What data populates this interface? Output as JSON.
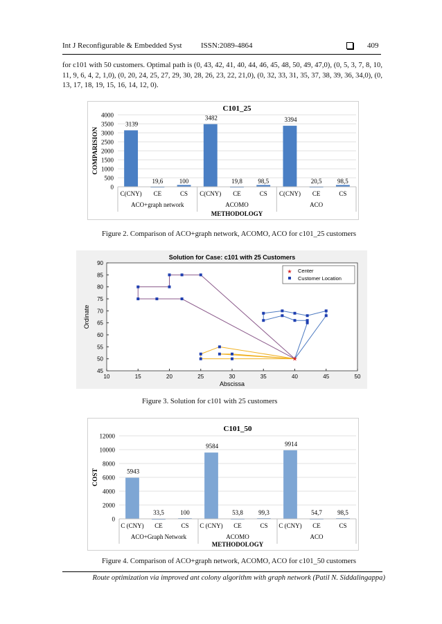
{
  "header": {
    "journal": "Int J Reconfigurable & Embedded Syst",
    "issn": "ISSN:2089-4864",
    "page_number": "409"
  },
  "paragraph": "for c101 with 50 customers. Optimal path is (0, 43, 42, 41, 40, 44, 46, 45, 48, 50, 49, 47,0), (0, 5, 3, 7, 8, 10, 11, 9, 6, 4, 2, 1,0), (0, 20, 24, 25, 27, 29, 30, 28, 26, 23, 22, 21,0), (0, 32, 33, 31, 35, 37, 38, 39, 36, 34,0), (0, 13, 17, 18, 19, 15, 16, 14, 12, 0).",
  "captions": {
    "fig2": "Figure 2. Comparison of ACO+graph network, ACOMO, ACO for c101_25 customers",
    "fig3": "Figure 3. Solution for c101 with 25 customers",
    "fig4": "Figure 4. Comparison of ACO+graph network, ACOMO, ACO for c101_50 customers"
  },
  "footer": "Route optimization via improved ant colony algorithm with graph network (Patil N. Siddalingappa)",
  "colors": {
    "bar": "#4a7fc4",
    "bar_light": "#7ea6d4",
    "route_orange": "#f0b020",
    "route_purple": "#8b5a8b",
    "route_blue": "#4a78c0",
    "center": "#d62728",
    "marker": "#1f3fb0"
  },
  "chart_data": [
    {
      "type": "bar",
      "title": "C101_25",
      "xlabel": "METHODOLOGY",
      "ylabel": "COMPARISION",
      "ylim": [
        0,
        4000
      ],
      "yticks": [
        "0",
        "500",
        "1000",
        "1500",
        "2000",
        "2500",
        "3000",
        "3500",
        "4000"
      ],
      "categories": [
        "C(CNY)",
        "CE",
        "CS",
        "C(CNY)",
        "CE",
        "CS",
        "C(CNY)",
        "CE",
        "CS"
      ],
      "groups": [
        "ACO+graph network",
        "ACOMO",
        "ACO"
      ],
      "values": [
        3139,
        19.6,
        100,
        3482,
        19.8,
        98.5,
        3394,
        20.5,
        98.5
      ],
      "value_labels": [
        "3139",
        "19,6",
        "100",
        "3482",
        "19,8",
        "98,5",
        "3394",
        "20,5",
        "98,5"
      ],
      "grid": true
    },
    {
      "type": "scatter",
      "title": "Solution for Case: c101 with 25 Customers",
      "xlabel": "Abscissa",
      "ylabel": "Ordinate",
      "xlim": [
        10,
        50
      ],
      "ylim": [
        45,
        90
      ],
      "xticks": [
        "10",
        "15",
        "20",
        "25",
        "30",
        "35",
        "40",
        "45",
        "50"
      ],
      "yticks": [
        "45",
        "50",
        "55",
        "60",
        "65",
        "70",
        "75",
        "80",
        "85",
        "90"
      ],
      "legend": [
        "Center",
        "Customer Location"
      ],
      "legend_position": "top-right",
      "center": [
        40,
        50
      ],
      "routes": [
        {
          "color": "orange",
          "points": [
            [
              40,
              50
            ],
            [
              28,
              55
            ],
            [
              25,
              52
            ],
            [
              25,
              50
            ],
            [
              30,
              50
            ],
            [
              40,
              50
            ]
          ]
        },
        {
          "color": "orange",
          "points": [
            [
              40,
              50
            ],
            [
              30,
              52
            ],
            [
              28,
              52
            ],
            [
              40,
              50
            ]
          ]
        },
        {
          "color": "purple",
          "points": [
            [
              40,
              50
            ],
            [
              22,
              75
            ],
            [
              18,
              75
            ],
            [
              15,
              75
            ],
            [
              15,
              80
            ],
            [
              20,
              80
            ],
            [
              20,
              85
            ],
            [
              22,
              85
            ],
            [
              25,
              85
            ],
            [
              40,
              50
            ]
          ]
        },
        {
          "color": "blue",
          "points": [
            [
              40,
              50
            ],
            [
              45,
              68
            ],
            [
              45,
              70
            ],
            [
              42,
              68
            ],
            [
              40,
              69
            ],
            [
              38,
              70
            ],
            [
              35,
              69
            ],
            [
              35,
              66
            ],
            [
              38,
              68
            ],
            [
              40,
              66
            ],
            [
              42,
              66
            ],
            [
              42,
              65
            ],
            [
              40,
              50
            ]
          ]
        }
      ]
    },
    {
      "type": "bar",
      "title": "C101_50",
      "xlabel": "METHODOLOGY",
      "ylabel": "COST",
      "ylim": [
        0,
        12000
      ],
      "yticks": [
        "0",
        "2000",
        "4000",
        "6000",
        "8000",
        "10000",
        "12000"
      ],
      "categories": [
        "C (CNY)",
        "CE",
        "CS",
        "C (CNY)",
        "CE",
        "CS",
        "C (CNY)",
        "CE",
        "CS"
      ],
      "groups": [
        "ACO+Graph Network",
        "ACOMO",
        "ACO"
      ],
      "values": [
        5943,
        33.5,
        100,
        9584,
        53.8,
        99.3,
        9914,
        54.7,
        98.5
      ],
      "value_labels": [
        "5943",
        "33,5",
        "100",
        "9584",
        "53,8",
        "99,3",
        "9914",
        "54,7",
        "98,5"
      ],
      "grid": true
    }
  ]
}
